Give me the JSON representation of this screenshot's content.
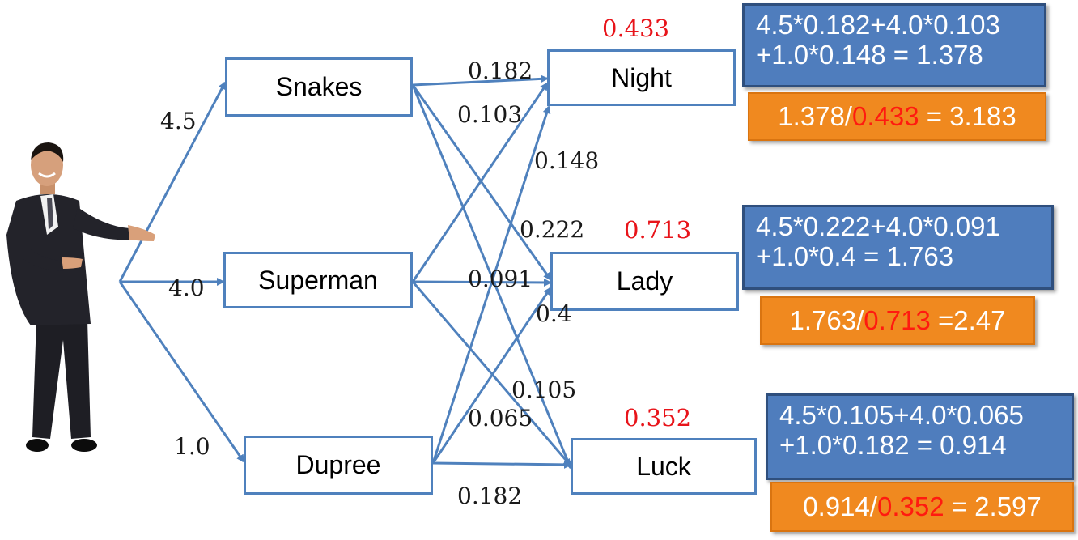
{
  "nodes": {
    "snakes": "Snakes",
    "superman": "Superman",
    "dupree": "Dupree",
    "night": "Night",
    "lady": "Lady",
    "luck": "Luck"
  },
  "user_weights": {
    "snakes": "4.5",
    "superman": "4.0",
    "dupree": "1.0"
  },
  "similarity_labels": {
    "snakes_night": "0.182",
    "superman_night": "0.103",
    "dupree_night": "0.148",
    "snakes_lady": "0.222",
    "superman_lady": "0.091",
    "dupree_lady": "0.4",
    "snakes_luck": "0.105",
    "superman_luck": "0.065",
    "dupree_luck": "0.182"
  },
  "scores": {
    "night": "0.433",
    "lady": "0.713",
    "luck": "0.352"
  },
  "calculations": {
    "night": {
      "line1": "4.5*0.182+4.0*0.103",
      "line2": "+1.0*0.148 = 1.378",
      "ratio_prefix": "1.378/",
      "ratio_red": "0.433",
      "ratio_suffix": " = 3.183"
    },
    "lady": {
      "line1": "4.5*0.222+4.0*0.091",
      "line2": "+1.0*0.4 = 1.763",
      "ratio_prefix": "1.763/",
      "ratio_red": "0.713",
      "ratio_suffix": " =2.47"
    },
    "luck": {
      "line1": "4.5*0.105+4.0*0.065",
      "line2": "+1.0*0.182 = 0.914",
      "ratio_prefix": "0.914/",
      "ratio_red": "0.352",
      "ratio_suffix": " = 2.597"
    }
  },
  "colors": {
    "arrow": "#4f81bd",
    "calc_box": "#4f7dbd",
    "ratio_box": "#f0891f",
    "score_text": "#e8141a"
  }
}
